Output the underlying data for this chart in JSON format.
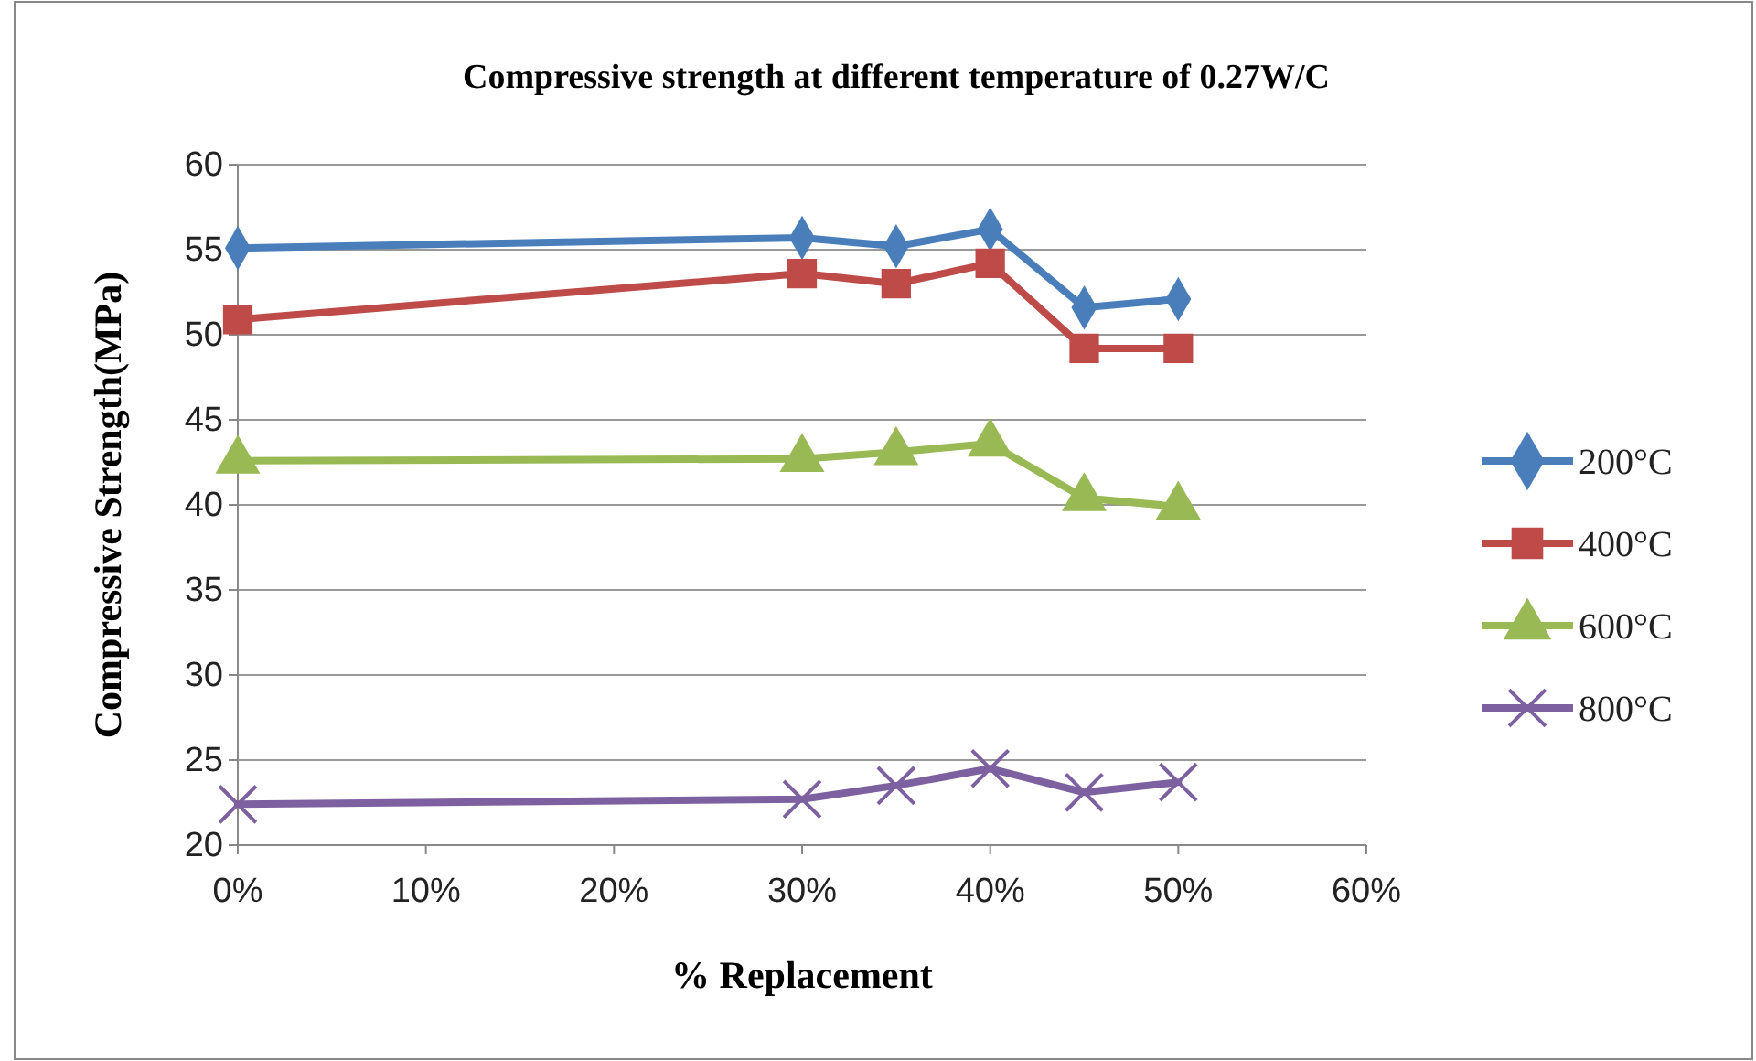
{
  "chart_data": {
    "type": "line",
    "title": "Compressive strength at different temperature of 0.27W/C",
    "xlabel": "% Replacement",
    "ylabel": "Compressive Strength(MPa)",
    "x": [
      0,
      30,
      35,
      40,
      45,
      50
    ],
    "xlim": [
      0,
      60
    ],
    "xticks": [
      {
        "value": 0,
        "label": "0%"
      },
      {
        "value": 10,
        "label": "10%"
      },
      {
        "value": 20,
        "label": "20%"
      },
      {
        "value": 30,
        "label": "30%"
      },
      {
        "value": 40,
        "label": "40%"
      },
      {
        "value": 50,
        "label": "50%"
      },
      {
        "value": 60,
        "label": "60%"
      }
    ],
    "ylim": [
      20,
      60
    ],
    "yticks": [
      20,
      25,
      30,
      35,
      40,
      45,
      50,
      55,
      60
    ],
    "grid": "y",
    "legend": "right",
    "line_style": "solid",
    "series": [
      {
        "name": "200°C",
        "color": "#4a7ebb",
        "marker": "diamond",
        "values": [
          55.1,
          55.7,
          55.2,
          56.2,
          51.6,
          52.1
        ]
      },
      {
        "name": "400°C",
        "color": "#be4b48",
        "marker": "square",
        "values": [
          50.9,
          53.6,
          53.0,
          54.2,
          49.2,
          49.2
        ]
      },
      {
        "name": "600°C",
        "color": "#98b954",
        "marker": "triangle",
        "values": [
          42.6,
          42.7,
          43.1,
          43.6,
          40.4,
          39.9
        ]
      },
      {
        "name": "800°C",
        "color": "#7d60a0",
        "marker": "cross",
        "values": [
          22.4,
          22.7,
          23.5,
          24.5,
          23.1,
          23.7
        ]
      }
    ]
  }
}
